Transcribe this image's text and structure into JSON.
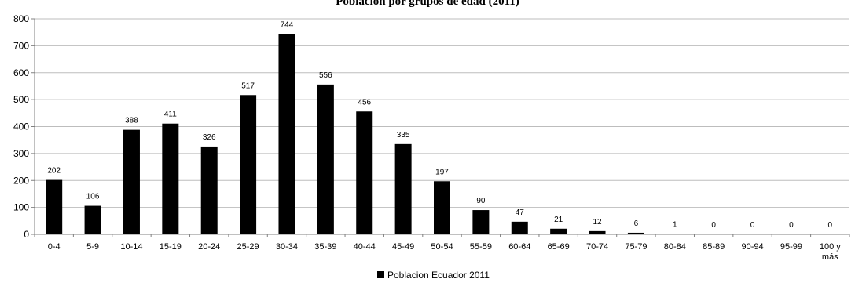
{
  "chart_data": {
    "type": "bar",
    "title": "Población por grupos de edad (2011)",
    "categories": [
      "0-4",
      "5-9",
      "10-14",
      "15-19",
      "20-24",
      "25-29",
      "30-34",
      "35-39",
      "40-44",
      "45-49",
      "50-54",
      "55-59",
      "60-64",
      "65-69",
      "70-74",
      "75-79",
      "80-84",
      "85-89",
      "90-94",
      "95-99",
      "100 y más"
    ],
    "category_lines": {
      "100 y más": [
        "100 y",
        "más"
      ]
    },
    "series": [
      {
        "name": "Poblacion Ecuador 2011",
        "color": "#000000",
        "values": [
          202,
          106,
          388,
          411,
          326,
          517,
          744,
          556,
          456,
          335,
          197,
          90,
          47,
          21,
          12,
          6,
          1,
          0,
          0,
          0,
          0
        ]
      }
    ],
    "yticks": [
      0,
      100,
      200,
      300,
      400,
      500,
      600,
      700,
      800
    ],
    "ylim": [
      0,
      800
    ],
    "grid": true,
    "legend": "bottom-center",
    "data_labels": true
  }
}
